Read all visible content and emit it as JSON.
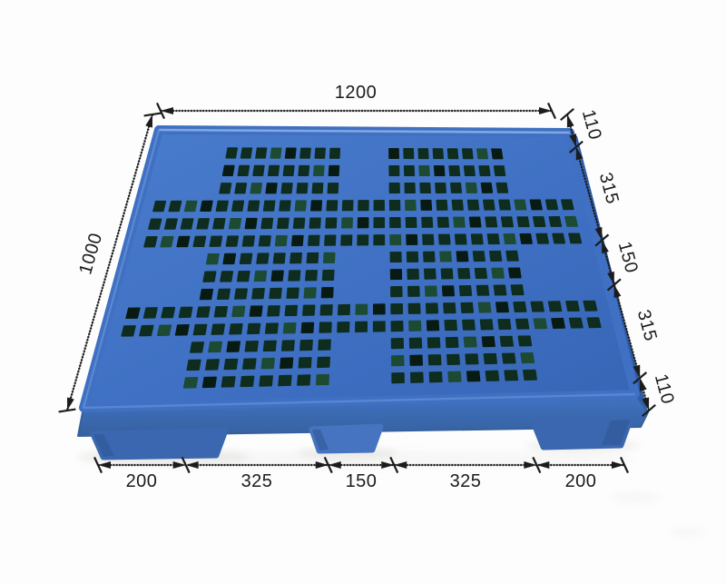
{
  "meta": {
    "description": "Dimensional diagram of a blue plastic pallet (photo with CAD-style dimension annotations)",
    "background": "#fdfdfd"
  },
  "pallet": {
    "name": "blue-plastic-pallet",
    "colors": {
      "deck_top_light": "#4a7ccd",
      "deck_top": "#3f70c3",
      "deck_top_dark": "#3765b6",
      "edge_highlight_top": "#8fb2e4",
      "edge_highlight_left": "#6b96d4",
      "front_rim": "#5d8ad2",
      "side_face": "#2d5ba6",
      "front_face_top": "#4273c4",
      "front_face_bottom": "#35619e",
      "leg": "#3a67b0",
      "leg_light": "#4674c0",
      "leg_dark": "#2d5590",
      "hole_dark": "#081b12",
      "hole_mid": "#0f2d1f",
      "hole_light": "#1d4a33",
      "shadow": "#8f8f84"
    }
  },
  "dimensions": {
    "ink": "#1c1c1c",
    "unit_note": "",
    "width": {
      "label": "1200",
      "value": 1200
    },
    "depth": {
      "label": "1000",
      "value": 1000
    },
    "right_chain": {
      "total": 1000,
      "segments": [
        {
          "label": "110",
          "value": 110
        },
        {
          "label": "315",
          "value": 315
        },
        {
          "label": "150",
          "value": 150
        },
        {
          "label": "315",
          "value": 315
        },
        {
          "label": "110",
          "value": 110
        }
      ]
    },
    "bottom_chain": {
      "total": 1200,
      "segments": [
        {
          "label": "200",
          "value": 200
        },
        {
          "label": "325",
          "value": 325
        },
        {
          "label": "150",
          "value": 150
        },
        {
          "label": "325",
          "value": 325
        },
        {
          "label": "200",
          "value": 200
        }
      ]
    }
  }
}
